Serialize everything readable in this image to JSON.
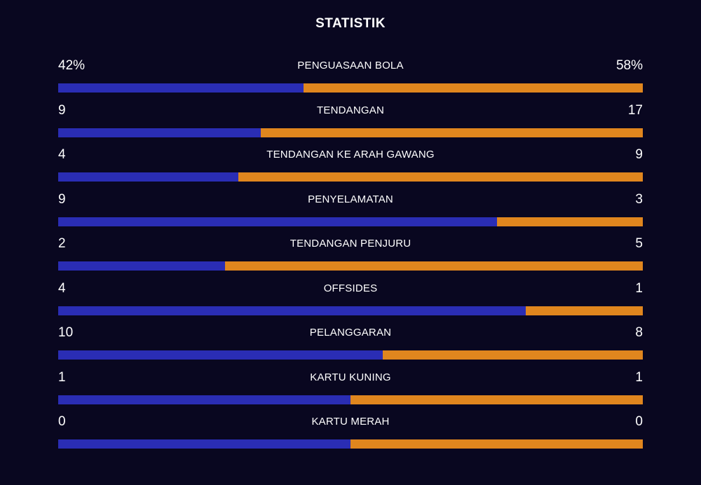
{
  "title": "STATISTIK",
  "colors": {
    "background": "#090720",
    "home_bar": "#2a2db4",
    "away_bar": "#e0861e"
  },
  "stats": [
    {
      "label": "PENGUASAAN BOLA",
      "home": "42%",
      "away": "58%",
      "home_share": 0.42
    },
    {
      "label": "TENDANGAN",
      "home": "9",
      "away": "17",
      "home_share": 0.3462
    },
    {
      "label": "TENDANGAN KE ARAH GAWANG",
      "home": "4",
      "away": "9",
      "home_share": 0.3077
    },
    {
      "label": "PENYELAMATAN",
      "home": "9",
      "away": "3",
      "home_share": 0.75
    },
    {
      "label": "TENDANGAN PENJURU",
      "home": "2",
      "away": "5",
      "home_share": 0.2857
    },
    {
      "label": "OFFSIDES",
      "home": "4",
      "away": "1",
      "home_share": 0.8
    },
    {
      "label": "PELANGGARAN",
      "home": "10",
      "away": "8",
      "home_share": 0.5556
    },
    {
      "label": "KARTU KUNING",
      "home": "1",
      "away": "1",
      "home_share": 0.5
    },
    {
      "label": "KARTU MERAH",
      "home": "0",
      "away": "0",
      "home_share": 0.5
    }
  ]
}
